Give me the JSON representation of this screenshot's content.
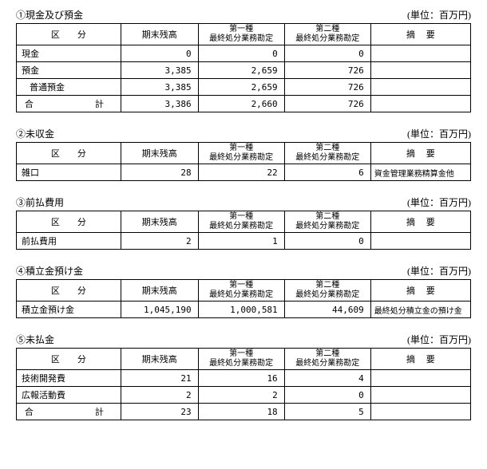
{
  "unit_label": "(単位：百万円)",
  "headers": {
    "category": "区　　分",
    "balance": "期末残高",
    "type1_line1": "第一種",
    "type1_line2": "最終処分業務勘定",
    "type2_line1": "第二種",
    "type2_line2": "最終処分業務勘定",
    "note": "摘　 要",
    "total": "合　　　計"
  },
  "section1": {
    "title": "①現金及び預金",
    "rows": [
      {
        "label": "現金",
        "balance": "0",
        "type1": "0",
        "type2": "0",
        "note": ""
      },
      {
        "label": "預金",
        "balance": "3,385",
        "type1": "2,659",
        "type2": "726",
        "note": ""
      },
      {
        "label_indent": "普通預金",
        "balance": "3,385",
        "type1": "2,659",
        "type2": "726",
        "note": ""
      }
    ],
    "total": {
      "balance": "3,386",
      "type1": "2,660",
      "type2": "726",
      "note": ""
    }
  },
  "section2": {
    "title": "②未収金",
    "rows": [
      {
        "label": "雑口",
        "balance": "28",
        "type1": "22",
        "type2": "6",
        "note": "資金管理業務精算金他"
      }
    ]
  },
  "section3": {
    "title": "③前払費用",
    "rows": [
      {
        "label": "前払費用",
        "balance": "2",
        "type1": "1",
        "type2": "0",
        "note": ""
      }
    ]
  },
  "section4": {
    "title": "④積立金預け金",
    "rows": [
      {
        "label": "積立金預け金",
        "balance": "1,045,190",
        "type1": "1,000,581",
        "type2": "44,609",
        "note": "最終処分積立金の預け金"
      }
    ]
  },
  "section5": {
    "title": "⑤未払金",
    "rows": [
      {
        "label": "技術開発費",
        "balance": "21",
        "type1": "16",
        "type2": "4",
        "note": ""
      },
      {
        "label": "広報活動費",
        "balance": "2",
        "type1": "2",
        "type2": "0",
        "note": ""
      }
    ],
    "total": {
      "balance": "23",
      "type1": "18",
      "type2": "5",
      "note": ""
    }
  }
}
